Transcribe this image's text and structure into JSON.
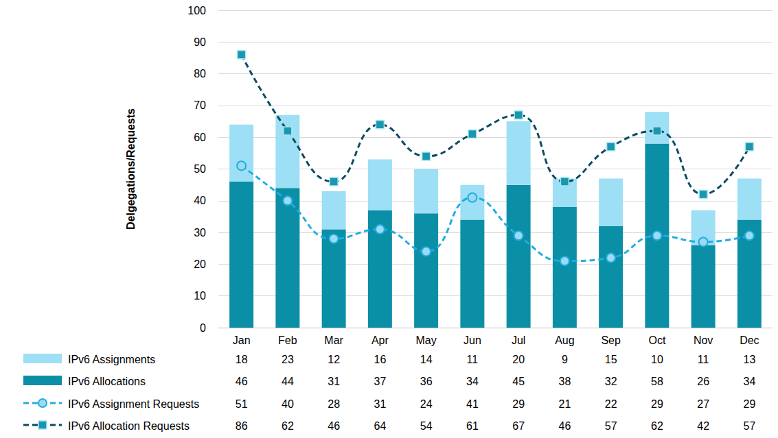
{
  "chart_data": {
    "type": "bar",
    "stacked": true,
    "grid": true,
    "ylabel": "Delgegations/Requests",
    "ylim": [
      0,
      100
    ],
    "yticks": [
      0,
      10,
      20,
      30,
      40,
      50,
      60,
      70,
      80,
      90,
      100
    ],
    "categories": [
      "Jan",
      "Feb",
      "Mar",
      "Apr",
      "May",
      "Jun",
      "Jul",
      "Aug",
      "Sep",
      "Oct",
      "Nov",
      "Dec"
    ],
    "series": [
      {
        "name": "IPv6 Assignments",
        "type": "bar",
        "color": "#9ddff4",
        "values": [
          18,
          23,
          12,
          16,
          14,
          11,
          20,
          9,
          15,
          10,
          11,
          13
        ]
      },
      {
        "name": "IPv6 Allocations",
        "type": "bar",
        "color": "#0a8fa6",
        "values": [
          46,
          44,
          31,
          37,
          36,
          34,
          45,
          38,
          32,
          58,
          26,
          34
        ]
      },
      {
        "name": "IPv6 Assignment Requests",
        "type": "line",
        "color": "#22ade0",
        "marker": "circle",
        "line_style": "dashed",
        "values": [
          51,
          40,
          28,
          31,
          24,
          41,
          29,
          21,
          22,
          29,
          27,
          29
        ]
      },
      {
        "name": "IPv6 Allocation Requests",
        "type": "line",
        "color": "#0b4c63",
        "marker": "square",
        "line_style": "dashed",
        "values": [
          86,
          62,
          46,
          64,
          54,
          61,
          67,
          46,
          57,
          62,
          42,
          57
        ]
      }
    ]
  }
}
